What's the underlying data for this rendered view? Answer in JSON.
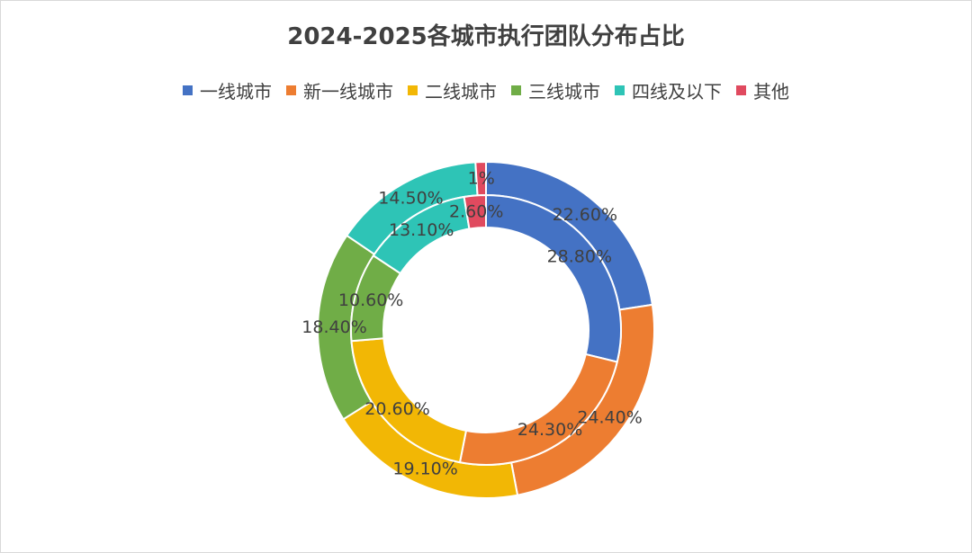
{
  "chart_data": {
    "type": "doughnut",
    "title": "2024-2025各城市执行团队分布占比",
    "legend_position": "top",
    "categories": [
      "一线城市",
      "新一线城市",
      "二线城市",
      "三线城市",
      "四线及以下",
      "其他"
    ],
    "colors": [
      "#4472C4",
      "#ED7D31",
      "#F2B705",
      "#70AD47",
      "#2EC4B6",
      "#E04A5F"
    ],
    "series": [
      {
        "name": "outer",
        "values": [
          22.6,
          24.4,
          19.1,
          18.4,
          14.5,
          1.0
        ],
        "labels": [
          "22.60%",
          "24.40%",
          "19.10%",
          "18.40%",
          "14.50%",
          "1%"
        ]
      },
      {
        "name": "inner",
        "values": [
          28.8,
          24.3,
          20.6,
          10.6,
          13.1,
          2.6
        ],
        "labels": [
          "28.80%",
          "24.30%",
          "20.60%",
          "10.60%",
          "13.10%",
          "2.60%"
        ]
      }
    ]
  }
}
